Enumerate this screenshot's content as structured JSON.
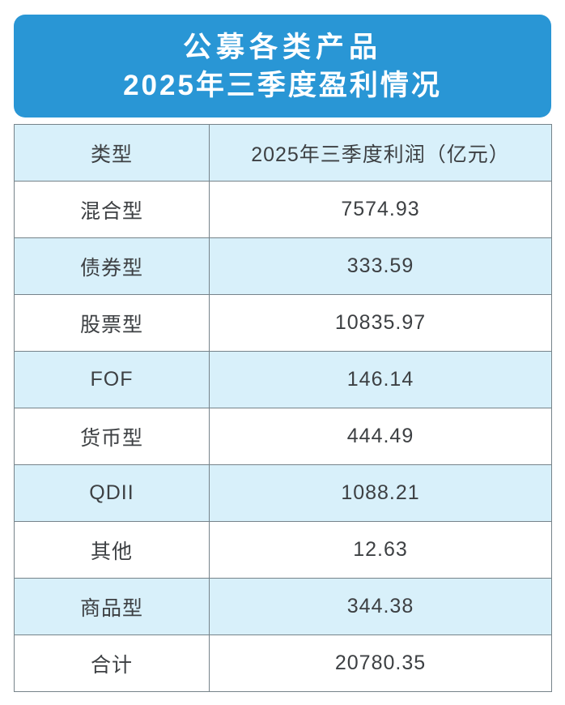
{
  "banner": {
    "title_line1": "公募各类产品",
    "title_line2": "2025年三季度盈利情况"
  },
  "table": {
    "columns": [
      "类型",
      "2025年三季度利润（亿元）"
    ],
    "rows": [
      {
        "type": "混合型",
        "value": "7574.93"
      },
      {
        "type": "债券型",
        "value": "333.59"
      },
      {
        "type": "股票型",
        "value": "10835.97"
      },
      {
        "type": "FOF",
        "value": "146.14"
      },
      {
        "type": "货币型",
        "value": "444.49"
      },
      {
        "type": "QDII",
        "value": "1088.21"
      },
      {
        "type": "其他",
        "value": "12.63"
      },
      {
        "type": "商品型",
        "value": "344.38"
      },
      {
        "type": "合计",
        "value": "20780.35"
      }
    ]
  },
  "colors": {
    "banner_blue": "#2996d5",
    "row_light_blue": "#d8f0fa",
    "border_gray": "#76838a",
    "text_dark": "#3d4043",
    "banner_text": "#ffffff"
  },
  "chart_data": {
    "type": "table",
    "title": "公募各类产品2025年三季度盈利情况",
    "columns": [
      "类型",
      "2025年三季度利润（亿元）"
    ],
    "categories": [
      "混合型",
      "债券型",
      "股票型",
      "FOF",
      "货币型",
      "QDII",
      "其他",
      "商品型",
      "合计"
    ],
    "values": [
      7574.93,
      333.59,
      10835.97,
      146.14,
      444.49,
      1088.21,
      12.63,
      344.38,
      20780.35
    ],
    "unit": "亿元"
  }
}
